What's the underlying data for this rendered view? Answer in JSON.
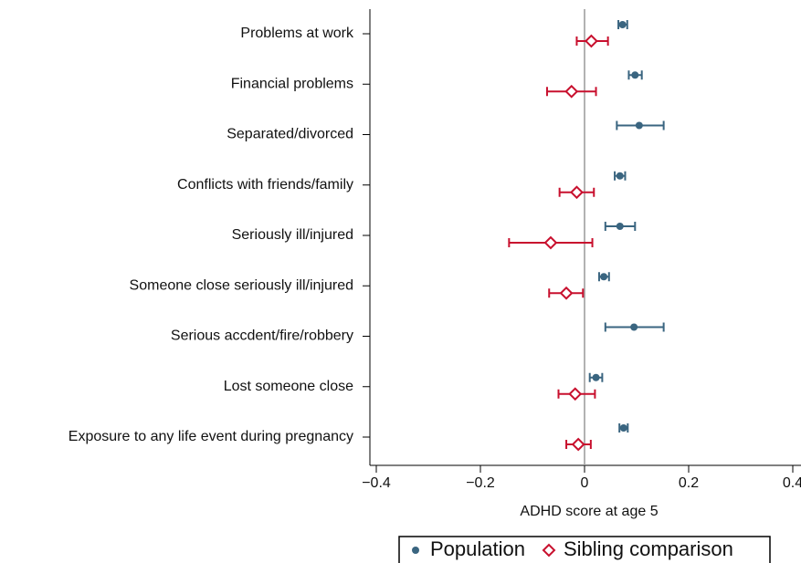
{
  "chart_data": {
    "type": "forest",
    "xlabel": "ADHD score at age 5",
    "categories": [
      "Problems at work",
      "Financial problems",
      "Separated/divorced",
      "Conflicts with friends/family",
      "Seriously ill/injured",
      "Someone close seriously ill/injured",
      "Serious accdent/fire/robbery",
      "Lost someone close",
      "Exposure to any life event during pregnancy"
    ],
    "series": [
      {
        "name": "Population",
        "color": "#3a6580",
        "marker": "circle",
        "values": [
          0.073,
          0.097,
          0.105,
          0.068,
          0.068,
          0.037,
          0.095,
          0.022,
          0.075
        ],
        "lower": [
          0.065,
          0.085,
          0.062,
          0.058,
          0.04,
          0.028,
          0.04,
          0.01,
          0.067
        ],
        "upper": [
          0.082,
          0.11,
          0.152,
          0.078,
          0.097,
          0.047,
          0.152,
          0.034,
          0.083
        ]
      },
      {
        "name": "Sibling comparison",
        "color": "#c8102e",
        "marker": "diamond",
        "values": [
          0.013,
          -0.025,
          null,
          -0.015,
          -0.065,
          -0.035,
          null,
          -0.018,
          -0.012
        ],
        "lower": [
          -0.015,
          -0.072,
          null,
          -0.048,
          -0.145,
          -0.068,
          null,
          -0.05,
          -0.035
        ],
        "upper": [
          0.045,
          0.022,
          null,
          0.018,
          0.015,
          -0.003,
          null,
          0.02,
          0.012
        ]
      }
    ],
    "xlim": [
      -0.4,
      0.4
    ],
    "xticks": [
      {
        "value": -0.4,
        "label": "−0.4"
      },
      {
        "value": -0.2,
        "label": "−0.2"
      },
      0,
      0.2,
      0.4
    ],
    "legend": "bottom"
  }
}
